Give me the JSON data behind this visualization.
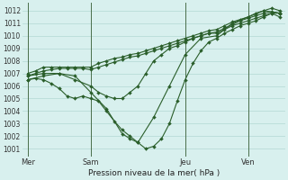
{
  "title": "Pression niveau de la mer( hPa )",
  "ylabel_ticks": [
    1001,
    1002,
    1003,
    1004,
    1005,
    1006,
    1007,
    1008,
    1009,
    1010,
    1011,
    1012
  ],
  "ylim": [
    1000.4,
    1012.6
  ],
  "xlim": [
    -2,
    98
  ],
  "xtick_positions": [
    0,
    24,
    60,
    84
  ],
  "xtick_labels": [
    "Mer",
    "Sam",
    "Jeu",
    "Ven"
  ],
  "vlines": [
    0,
    24,
    60,
    84
  ],
  "bg_color": "#d8f0ee",
  "grid_color": "#b8dcd8",
  "line_color": "#2a5e2a",
  "marker": "D",
  "marker_size": 2.0,
  "line_width": 0.8,
  "series": [
    {
      "x": [
        0,
        3,
        6,
        9,
        12,
        15,
        18,
        21,
        24,
        27,
        30,
        33,
        36,
        39,
        42,
        45,
        48,
        51,
        54,
        57,
        60,
        63,
        66,
        69,
        72,
        75,
        78,
        81,
        84,
        87,
        90,
        93,
        96
      ],
      "y": [
        1007.0,
        1007.2,
        1007.5,
        1007.5,
        1007.5,
        1007.5,
        1007.5,
        1007.5,
        1007.5,
        1007.8,
        1008.0,
        1008.2,
        1008.3,
        1008.5,
        1008.6,
        1008.8,
        1009.0,
        1009.2,
        1009.4,
        1009.6,
        1009.8,
        1010.0,
        1010.2,
        1010.4,
        1010.5,
        1010.8,
        1011.1,
        1011.3,
        1011.5,
        1011.8,
        1012.0,
        1012.2,
        1012.0
      ]
    },
    {
      "x": [
        0,
        3,
        6,
        9,
        12,
        15,
        18,
        21,
        24,
        27,
        30,
        33,
        36,
        39,
        42,
        45,
        48,
        51,
        54,
        57,
        60,
        63,
        66,
        69,
        72,
        75,
        78,
        81,
        84,
        87,
        90,
        93,
        96
      ],
      "y": [
        1006.8,
        1007.0,
        1007.2,
        1007.3,
        1007.4,
        1007.4,
        1007.4,
        1007.4,
        1007.3,
        1007.5,
        1007.7,
        1007.9,
        1008.1,
        1008.3,
        1008.4,
        1008.6,
        1008.8,
        1009.0,
        1009.2,
        1009.4,
        1009.6,
        1009.8,
        1010.0,
        1010.2,
        1010.3,
        1010.6,
        1010.9,
        1011.2,
        1011.4,
        1011.6,
        1011.8,
        1011.9,
        1011.8
      ]
    },
    {
      "x": [
        0,
        6,
        12,
        18,
        24,
        27,
        30,
        33,
        36,
        39,
        42,
        45,
        48,
        51,
        54,
        57,
        60,
        63,
        66,
        69,
        72,
        75,
        78,
        81,
        84,
        87,
        90,
        93,
        96
      ],
      "y": [
        1006.5,
        1006.8,
        1007.0,
        1006.5,
        1006.0,
        1005.5,
        1005.2,
        1005.0,
        1005.0,
        1005.5,
        1006.0,
        1007.0,
        1008.0,
        1008.5,
        1009.0,
        1009.2,
        1009.5,
        1009.8,
        1010.0,
        1010.2,
        1010.2,
        1010.5,
        1010.8,
        1011.0,
        1011.2,
        1011.4,
        1011.6,
        1011.8,
        1011.8
      ]
    },
    {
      "x": [
        0,
        3,
        6,
        9,
        12,
        15,
        18,
        21,
        24,
        27,
        30,
        33,
        36,
        39,
        42,
        45,
        48,
        51,
        54,
        57,
        60,
        63,
        66,
        69,
        72,
        75,
        78,
        81,
        84,
        87,
        90,
        93,
        96
      ],
      "y": [
        1006.5,
        1006.6,
        1006.5,
        1006.2,
        1005.8,
        1005.2,
        1005.0,
        1005.2,
        1005.0,
        1004.8,
        1004.0,
        1003.2,
        1002.5,
        1002.0,
        1001.5,
        1001.0,
        1001.2,
        1001.8,
        1003.0,
        1004.8,
        1006.5,
        1007.8,
        1008.8,
        1009.5,
        1009.8,
        1010.2,
        1010.5,
        1010.8,
        1011.0,
        1011.2,
        1011.5,
        1011.8,
        1011.5
      ]
    },
    {
      "x": [
        0,
        6,
        12,
        18,
        24,
        30,
        36,
        39,
        42,
        48,
        54,
        60,
        66,
        72,
        78,
        84,
        90,
        96
      ],
      "y": [
        1006.8,
        1007.0,
        1007.0,
        1006.8,
        1005.5,
        1004.2,
        1002.2,
        1001.8,
        1001.5,
        1003.5,
        1006.0,
        1008.5,
        1009.8,
        1010.0,
        1011.0,
        1011.5,
        1012.0,
        1011.8
      ]
    }
  ]
}
